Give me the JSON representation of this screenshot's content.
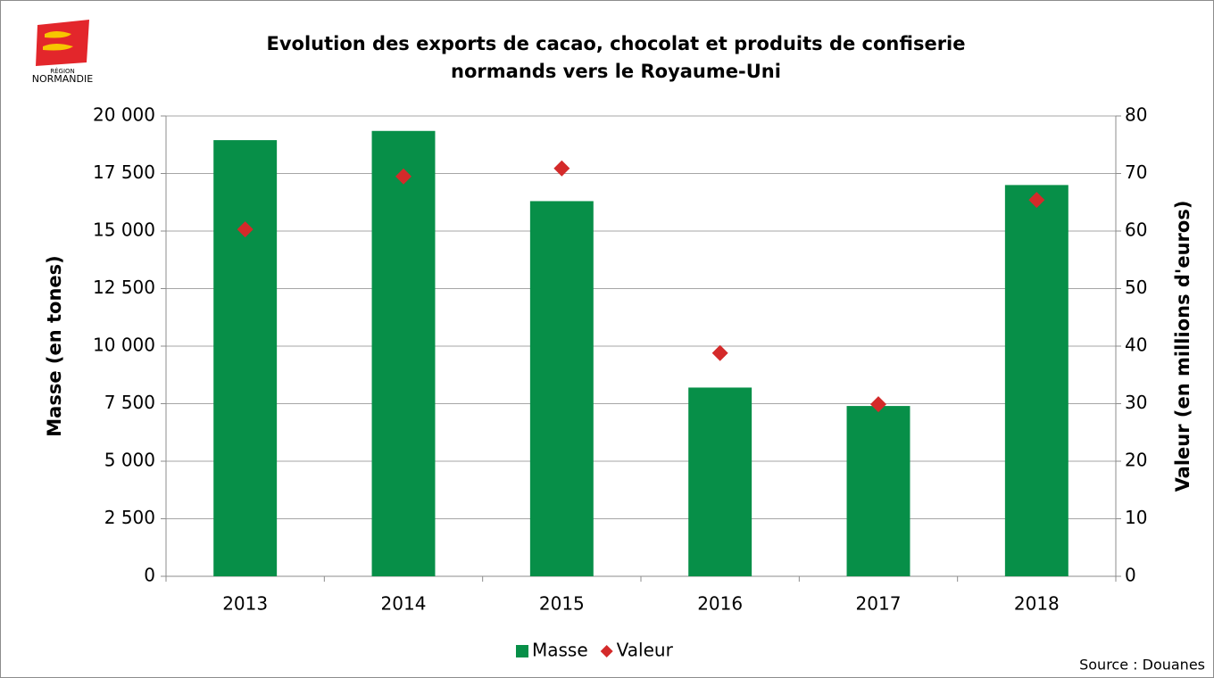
{
  "chart_data": {
    "type": "bar",
    "title": [
      "Evolution des exports de cacao, chocolat et produits de confiserie",
      "normands vers le Royaume-Uni"
    ],
    "logo": [
      "RÉGION",
      "NORMANDIE"
    ],
    "source": "Source : Douanes",
    "ylabel": "Masse (en tones)",
    "y2label": "Valeur (en millions d'euros)",
    "categories": [
      "2013",
      "2014",
      "2015",
      "2016",
      "2017",
      "2018"
    ],
    "series": [
      {
        "name": "Masse",
        "type": "bar",
        "color": "#078f48",
        "values": [
          18950,
          19350,
          16300,
          8200,
          7400,
          17000
        ]
      },
      {
        "name": "Valeur",
        "type": "scatter",
        "marker": "diamond",
        "axis": "y2",
        "color": "#d42a2a",
        "values": [
          60.3,
          69.5,
          70.9,
          38.8,
          29.9,
          65.4
        ]
      }
    ],
    "ylim": [
      0,
      20000
    ],
    "yticks": [
      {
        "value": 0,
        "label": "0"
      },
      {
        "value": 2500,
        "label": "2 500"
      },
      {
        "value": 5000,
        "label": "5 000"
      },
      {
        "value": 7500,
        "label": "7 500"
      },
      {
        "value": 10000,
        "label": "10 000"
      },
      {
        "value": 12500,
        "label": "12 500"
      },
      {
        "value": 15000,
        "label": "15 000"
      },
      {
        "value": 17500,
        "label": "17 500"
      },
      {
        "value": 20000,
        "label": "20 000"
      }
    ],
    "y2lim": [
      0,
      80
    ],
    "y2ticks": [
      0,
      10,
      20,
      30,
      40,
      50,
      60,
      70,
      80
    ],
    "grid": true,
    "legend": "bottom"
  }
}
